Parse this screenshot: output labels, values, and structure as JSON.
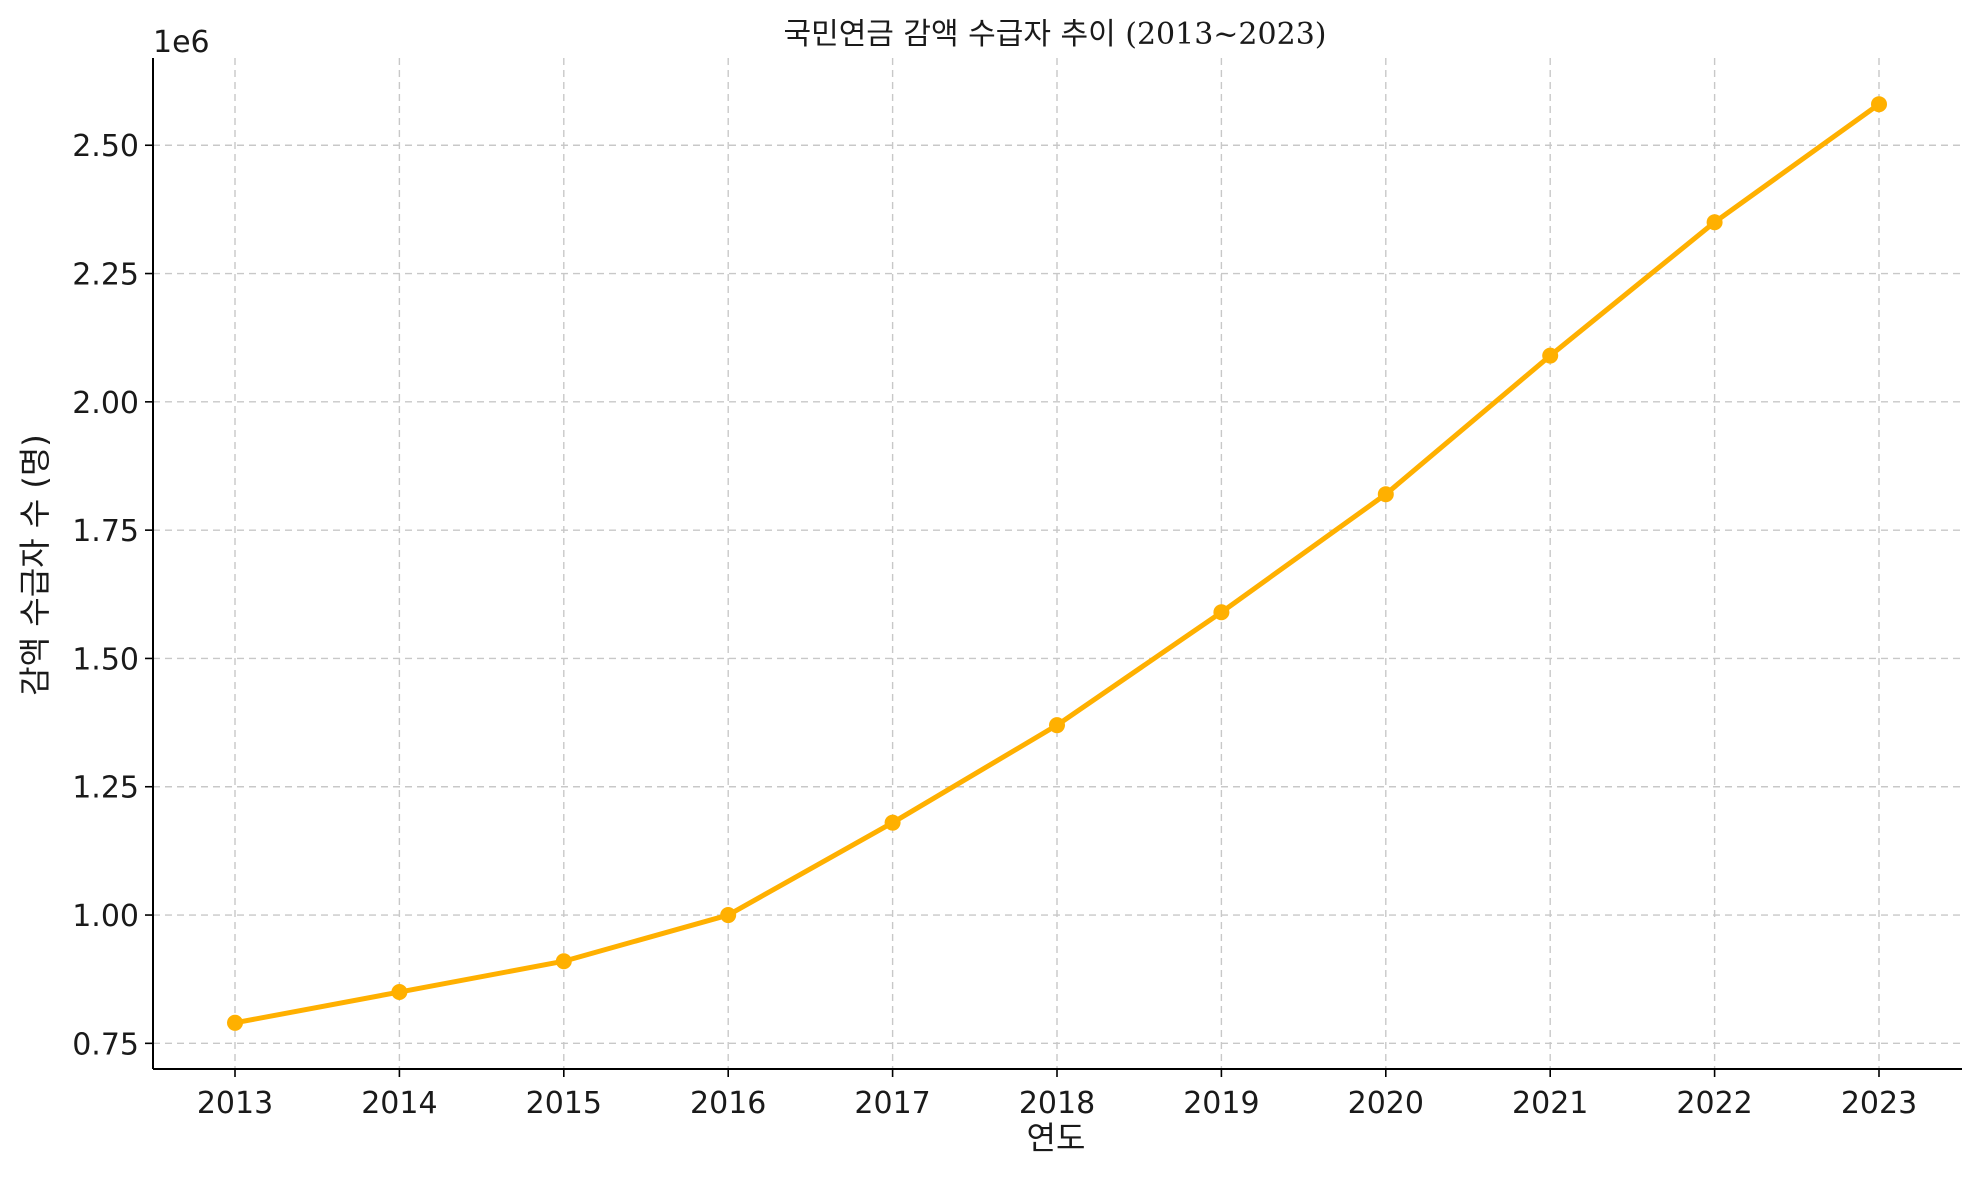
{
  "chart_data": {
    "type": "line",
    "title": "국민연금 감액 수급자 추이 (2013~2023)",
    "xlabel": "연도",
    "ylabel": "감액 수급자 수 (명)",
    "offset_label": "1e6",
    "categories": [
      "2013",
      "2014",
      "2015",
      "2016",
      "2017",
      "2018",
      "2019",
      "2020",
      "2021",
      "2022",
      "2023"
    ],
    "series": [
      {
        "values": [
          790000,
          850000,
          910000,
          1000000,
          1180000,
          1370000,
          1590000,
          1820000,
          2090000,
          2350000,
          2580000
        ],
        "color": "#FFB000"
      }
    ],
    "ylim": [
      700000,
      2670000
    ],
    "yticks": [
      750000,
      1000000,
      1250000,
      1500000,
      1750000,
      2000000,
      2250000,
      2500000
    ],
    "ytick_labels": [
      "0.75",
      "1.00",
      "1.25",
      "1.50",
      "1.75",
      "2.00",
      "2.25",
      "2.50"
    ],
    "grid": true,
    "markers": true
  }
}
